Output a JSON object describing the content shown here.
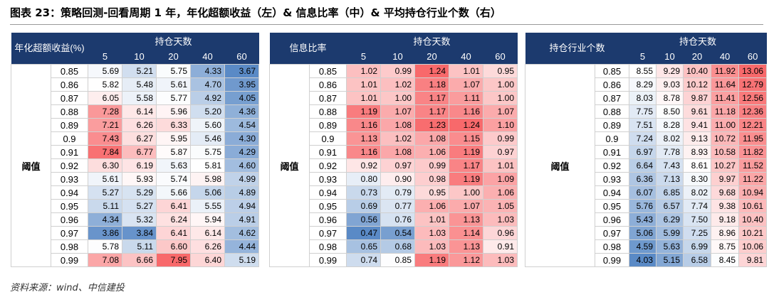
{
  "title": "图表 23：策略回测-回看周期 1 年，年化超额收益（左）& 信息比率（中）& 平均持仓行业个数（右）",
  "source": "资料来源：wind、中信建投",
  "color_scale": {
    "low": "#5a8ac6",
    "mid": "#ffffff",
    "high": "#f8696b"
  },
  "tables": [
    {
      "corner": "年化超额收益(%)",
      "group": "持仓天数",
      "columns": [
        "5",
        "10",
        "20",
        "40",
        "60"
      ],
      "row_header": "阈值",
      "rows": [
        {
          "label": "0.85",
          "values": [
            "5.69",
            "5.21",
            "5.75",
            "4.33",
            "3.67"
          ]
        },
        {
          "label": "0.86",
          "values": [
            "5.82",
            "5.48",
            "5.61",
            "4.70",
            "3.95"
          ]
        },
        {
          "label": "0.87",
          "values": [
            "6.05",
            "5.58",
            "5.77",
            "4.92",
            "4.05"
          ]
        },
        {
          "label": "0.88",
          "values": [
            "7.28",
            "6.14",
            "5.96",
            "5.20",
            "4.36"
          ]
        },
        {
          "label": "0.89",
          "values": [
            "7.21",
            "6.26",
            "6.33",
            "5.60",
            "4.54"
          ]
        },
        {
          "label": "0.9",
          "values": [
            "7.43",
            "6.27",
            "5.95",
            "5.46",
            "4.30"
          ]
        },
        {
          "label": "0.91",
          "values": [
            "7.84",
            "6.77",
            "5.87",
            "5.75",
            "4.29"
          ]
        },
        {
          "label": "0.92",
          "values": [
            "6.30",
            "6.19",
            "5.63",
            "5.81",
            "4.60"
          ]
        },
        {
          "label": "0.93",
          "values": [
            "5.61",
            "5.93",
            "5.74",
            "5.98",
            "4.99"
          ]
        },
        {
          "label": "0.94",
          "values": [
            "5.27",
            "5.29",
            "5.66",
            "5.06",
            "4.89"
          ]
        },
        {
          "label": "0.95",
          "values": [
            "5.11",
            "5.27",
            "6.41",
            "5.55",
            "4.94"
          ]
        },
        {
          "label": "0.96",
          "values": [
            "4.34",
            "5.32",
            "6.24",
            "5.94",
            "4.91"
          ]
        },
        {
          "label": "0.97",
          "values": [
            "3.86",
            "3.84",
            "6.41",
            "6.14",
            "4.62"
          ]
        },
        {
          "label": "0.98",
          "values": [
            "5.78",
            "5.11",
            "6.60",
            "6.26",
            "4.44"
          ]
        },
        {
          "label": "0.99",
          "values": [
            "7.08",
            "6.66",
            "7.95",
            "6.40",
            "5.19"
          ]
        }
      ]
    },
    {
      "corner": "信息比率",
      "group": "持仓天数",
      "columns": [
        "5",
        "10",
        "20",
        "40",
        "60"
      ],
      "row_header": "阈值",
      "rows": [
        {
          "label": "0.85",
          "values": [
            "1.02",
            "0.99",
            "1.24",
            "1.01",
            "0.95"
          ]
        },
        {
          "label": "0.86",
          "values": [
            "1.01",
            "1.02",
            "1.18",
            "1.07",
            "1.00"
          ]
        },
        {
          "label": "0.87",
          "values": [
            "1.01",
            "1.00",
            "1.17",
            "1.11",
            "1.00"
          ]
        },
        {
          "label": "0.88",
          "values": [
            "1.19",
            "1.07",
            "1.17",
            "1.16",
            "1.07"
          ]
        },
        {
          "label": "0.89",
          "values": [
            "1.16",
            "1.08",
            "1.23",
            "1.24",
            "1.10"
          ]
        },
        {
          "label": "0.9",
          "values": [
            "1.13",
            "1.02",
            "1.08",
            "1.15",
            "0.99"
          ]
        },
        {
          "label": "0.91",
          "values": [
            "1.16",
            "1.08",
            "1.06",
            "1.19",
            "0.97"
          ]
        },
        {
          "label": "0.92",
          "values": [
            "0.92",
            "0.97",
            "0.99",
            "1.17",
            "1.01"
          ]
        },
        {
          "label": "0.93",
          "values": [
            "0.80",
            "0.90",
            "0.98",
            "1.19",
            "1.09"
          ]
        },
        {
          "label": "0.94",
          "values": [
            "0.73",
            "0.79",
            "0.95",
            "1.00",
            "1.06"
          ]
        },
        {
          "label": "0.95",
          "values": [
            "0.69",
            "0.77",
            "1.06",
            "1.07",
            "1.05"
          ]
        },
        {
          "label": "0.96",
          "values": [
            "0.56",
            "0.76",
            "1.01",
            "1.13",
            "1.03"
          ]
        },
        {
          "label": "0.97",
          "values": [
            "0.47",
            "0.54",
            "1.03",
            "1.14",
            "0.96"
          ]
        },
        {
          "label": "0.98",
          "values": [
            "0.65",
            "0.68",
            "1.03",
            "1.13",
            "0.91"
          ]
        },
        {
          "label": "0.99",
          "values": [
            "0.74",
            "0.85",
            "1.19",
            "1.12",
            "1.03"
          ]
        }
      ]
    },
    {
      "corner": "持仓行业个数",
      "group": "持仓天数",
      "columns": [
        "5",
        "10",
        "20",
        "40",
        "60"
      ],
      "row_header": "阈值",
      "rows": [
        {
          "label": "0.85",
          "values": [
            "8.55",
            "9.29",
            "10.40",
            "11.92",
            "13.06"
          ]
        },
        {
          "label": "0.86",
          "values": [
            "8.29",
            "9.03",
            "10.12",
            "11.64",
            "12.79"
          ]
        },
        {
          "label": "0.87",
          "values": [
            "8.03",
            "8.78",
            "9.87",
            "11.41",
            "12.56"
          ]
        },
        {
          "label": "0.88",
          "values": [
            "7.75",
            "8.50",
            "9.61",
            "11.18",
            "12.36"
          ]
        },
        {
          "label": "0.89",
          "values": [
            "7.51",
            "8.28",
            "9.41",
            "11.00",
            "12.21"
          ]
        },
        {
          "label": "0.9",
          "values": [
            "7.24",
            "8.02",
            "9.13",
            "10.72",
            "11.95"
          ]
        },
        {
          "label": "0.91",
          "values": [
            "6.97",
            "7.78",
            "8.93",
            "10.58",
            "11.82"
          ]
        },
        {
          "label": "0.92",
          "values": [
            "6.64",
            "7.43",
            "8.61",
            "10.27",
            "11.52"
          ]
        },
        {
          "label": "0.93",
          "values": [
            "6.36",
            "7.13",
            "8.30",
            "9.97",
            "11.22"
          ]
        },
        {
          "label": "0.94",
          "values": [
            "6.07",
            "6.85",
            "8.02",
            "9.68",
            "10.94"
          ]
        },
        {
          "label": "0.95",
          "values": [
            "5.76",
            "6.57",
            "7.74",
            "9.38",
            "10.61"
          ]
        },
        {
          "label": "0.96",
          "values": [
            "5.43",
            "6.29",
            "7.50",
            "9.18",
            "10.40"
          ]
        },
        {
          "label": "0.97",
          "values": [
            "5.06",
            "5.99",
            "7.25",
            "8.96",
            "10.21"
          ]
        },
        {
          "label": "0.98",
          "values": [
            "4.59",
            "5.63",
            "6.99",
            "8.75",
            "10.06"
          ]
        },
        {
          "label": "0.99",
          "values": [
            "4.03",
            "5.15",
            "6.58",
            "8.45",
            "9.81"
          ]
        }
      ]
    }
  ]
}
